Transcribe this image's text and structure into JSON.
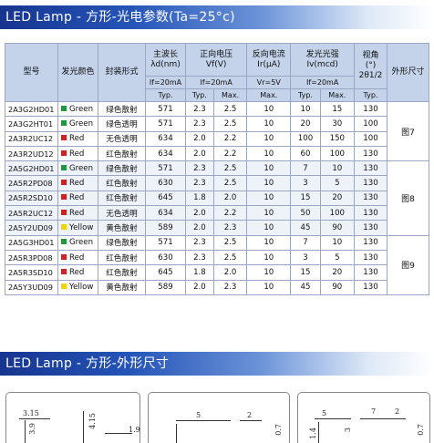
{
  "header_title": "LED Lamp - 方形-光电参数(Ta=25°c)",
  "outline_title": "LED Lamp - 方形-外形尺寸",
  "columns": {
    "model": "型号",
    "color": "发光颜色",
    "package": "封装形式",
    "wavelength": "主波长",
    "wavelength_unit": "λd(nm)",
    "vf": "正向电压",
    "vf_unit": "Vf(V)",
    "ir": "反向电流",
    "ir_unit": "Ir(μA)",
    "iv": "发光光强",
    "iv_unit": "Iv(mcd)",
    "angle": "视角",
    "angle_unit": "(°)",
    "angle_sub": "2θ1/2",
    "outline": "外形尺寸"
  },
  "conditions": {
    "wavelength": "If=20mA",
    "vf": "If=20mA",
    "ir": "Vr=5V",
    "iv": "If=20mA"
  },
  "sub_headers": {
    "typ": "Typ.",
    "max": "Max.",
    "min": "Min."
  },
  "colors": {
    "Green": "#1e9a3a",
    "Red": "#d42020",
    "Yellow": "#f2d400",
    "header_bg": "#c4d3ea",
    "border": "#9aa6c4"
  },
  "rows": [
    {
      "model": "2A3G2HD01",
      "color": "Green",
      "package": "绿色散射",
      "wl": "571",
      "vf_typ": "2.3",
      "vf_max": "2.5",
      "ir": "10",
      "iv_min": "10",
      "iv_typ": "15",
      "angle": "130"
    },
    {
      "model": "2A3G2HT01",
      "color": "Green",
      "package": "绿色透明",
      "wl": "571",
      "vf_typ": "2.3",
      "vf_max": "2.5",
      "ir": "10",
      "iv_min": "20",
      "iv_typ": "30",
      "angle": "100"
    },
    {
      "model": "2A3R2UC12",
      "color": "Red",
      "package": "无色透明",
      "wl": "634",
      "vf_typ": "2.0",
      "vf_max": "2.2",
      "ir": "10",
      "iv_min": "100",
      "iv_typ": "150",
      "angle": "100"
    },
    {
      "model": "2A3R2UD12",
      "color": "Red",
      "package": "红色散射",
      "wl": "634",
      "vf_typ": "2.0",
      "vf_max": "2.2",
      "ir": "10",
      "iv_min": "60",
      "iv_typ": "100",
      "angle": "130"
    },
    {
      "model": "2A5G2HD01",
      "color": "Green",
      "package": "绿色散射",
      "wl": "571",
      "vf_typ": "2.3",
      "vf_max": "2.5",
      "ir": "10",
      "iv_min": "7",
      "iv_typ": "10",
      "angle": "130"
    },
    {
      "model": "2A5R2PD08",
      "color": "Red",
      "package": "红色散射",
      "wl": "630",
      "vf_typ": "2.3",
      "vf_max": "2.5",
      "ir": "10",
      "iv_min": "3",
      "iv_typ": "5",
      "angle": "130"
    },
    {
      "model": "2A5R2SD10",
      "color": "Red",
      "package": "红色散射",
      "wl": "645",
      "vf_typ": "1.8",
      "vf_max": "2.0",
      "ir": "10",
      "iv_min": "15",
      "iv_typ": "20",
      "angle": "130"
    },
    {
      "model": "2A5R2UC12",
      "color": "Red",
      "package": "无色透明",
      "wl": "634",
      "vf_typ": "2.0",
      "vf_max": "2.2",
      "ir": "10",
      "iv_min": "50",
      "iv_typ": "100",
      "angle": "130"
    },
    {
      "model": "2A5Y2UD09",
      "color": "Yellow",
      "package": "黄色散射",
      "wl": "589",
      "vf_typ": "2.0",
      "vf_max": "2.3",
      "ir": "10",
      "iv_min": "45",
      "iv_typ": "90",
      "angle": "130"
    },
    {
      "model": "2A5G3HD01",
      "color": "Green",
      "package": "绿色散射",
      "wl": "571",
      "vf_typ": "2.3",
      "vf_max": "2.5",
      "ir": "10",
      "iv_min": "7",
      "iv_typ": "10",
      "angle": "130"
    },
    {
      "model": "2A5R3PD08",
      "color": "Red",
      "package": "红色散射",
      "wl": "630",
      "vf_typ": "2.3",
      "vf_max": "2.5",
      "ir": "10",
      "iv_min": "3",
      "iv_typ": "5",
      "angle": "130"
    },
    {
      "model": "2A5R3SD10",
      "color": "Red",
      "package": "红色散射",
      "wl": "645",
      "vf_typ": "1.8",
      "vf_max": "2.0",
      "ir": "10",
      "iv_min": "15",
      "iv_typ": "20",
      "angle": "130"
    },
    {
      "model": "2A5Y3UD09",
      "color": "Yellow",
      "package": "黄色散射",
      "wl": "589",
      "vf_typ": "2.0",
      "vf_max": "2.3",
      "ir": "10",
      "iv_min": "45",
      "iv_typ": "90",
      "angle": "130"
    }
  ],
  "figures": [
    {
      "label": "图7",
      "rows": 4
    },
    {
      "label": "图8",
      "rows": 5
    },
    {
      "label": "图9",
      "rows": 4
    }
  ],
  "drawing_dims": {
    "panel1": [
      "3.15",
      "3.9",
      "4.15",
      "1.9"
    ],
    "panel2": [
      "5",
      "2",
      "0.7"
    ],
    "panel3": [
      "5",
      "7",
      "2",
      "1.4",
      "3",
      "0.7"
    ]
  }
}
